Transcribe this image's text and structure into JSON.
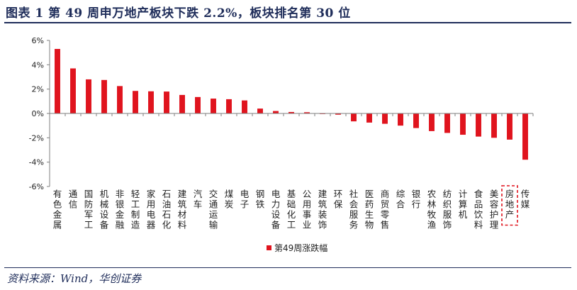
{
  "header": {
    "title": "图表 1   第 49 周申万地产板块下跌 2.2%，板块排名第 30 位"
  },
  "source": "资料来源：Wind，华创证券",
  "colors": {
    "bar": "#e0141e",
    "highlight": "#e0141e",
    "axis": "#7f7f7f",
    "title": "#1f2d5a"
  },
  "chart_data": {
    "type": "bar",
    "categories": [
      "有色金属",
      "通信",
      "国防军工",
      "机械设备",
      "非银金融",
      "轻工制造",
      "家用电器",
      "石油石化",
      "建筑材料",
      "汽车",
      "交通运输",
      "煤炭",
      "电子",
      "钢铁",
      "电力设备",
      "基础化工",
      "公用事业",
      "建筑装饰",
      "环保",
      "社会服务",
      "医药生物",
      "商贸零售",
      "综合",
      "银行",
      "农林牧渔",
      "纺织服饰",
      "计算机",
      "食品饮料",
      "美容护理",
      "房地产",
      "传媒"
    ],
    "series": [
      {
        "name": "第49周涨跌幅",
        "unit": "%",
        "values": [
          5.3,
          3.7,
          2.8,
          2.75,
          2.25,
          1.85,
          1.82,
          1.8,
          1.52,
          1.35,
          1.22,
          1.17,
          1.07,
          0.4,
          0.2,
          0.12,
          0.1,
          -0.05,
          -0.1,
          -0.65,
          -0.75,
          -0.85,
          -1.0,
          -1.2,
          -1.45,
          -1.6,
          -1.75,
          -1.9,
          -2.0,
          -2.15,
          -3.8
        ]
      }
    ],
    "highlight_category": "房地产",
    "ylim": [
      -6,
      6
    ],
    "yticks": [
      -6,
      -4,
      -2,
      0,
      2,
      4,
      6
    ],
    "ytick_suffix": "%",
    "xlabel": "",
    "ylabel": "",
    "grid": false,
    "legend_position": "bottom-center"
  }
}
